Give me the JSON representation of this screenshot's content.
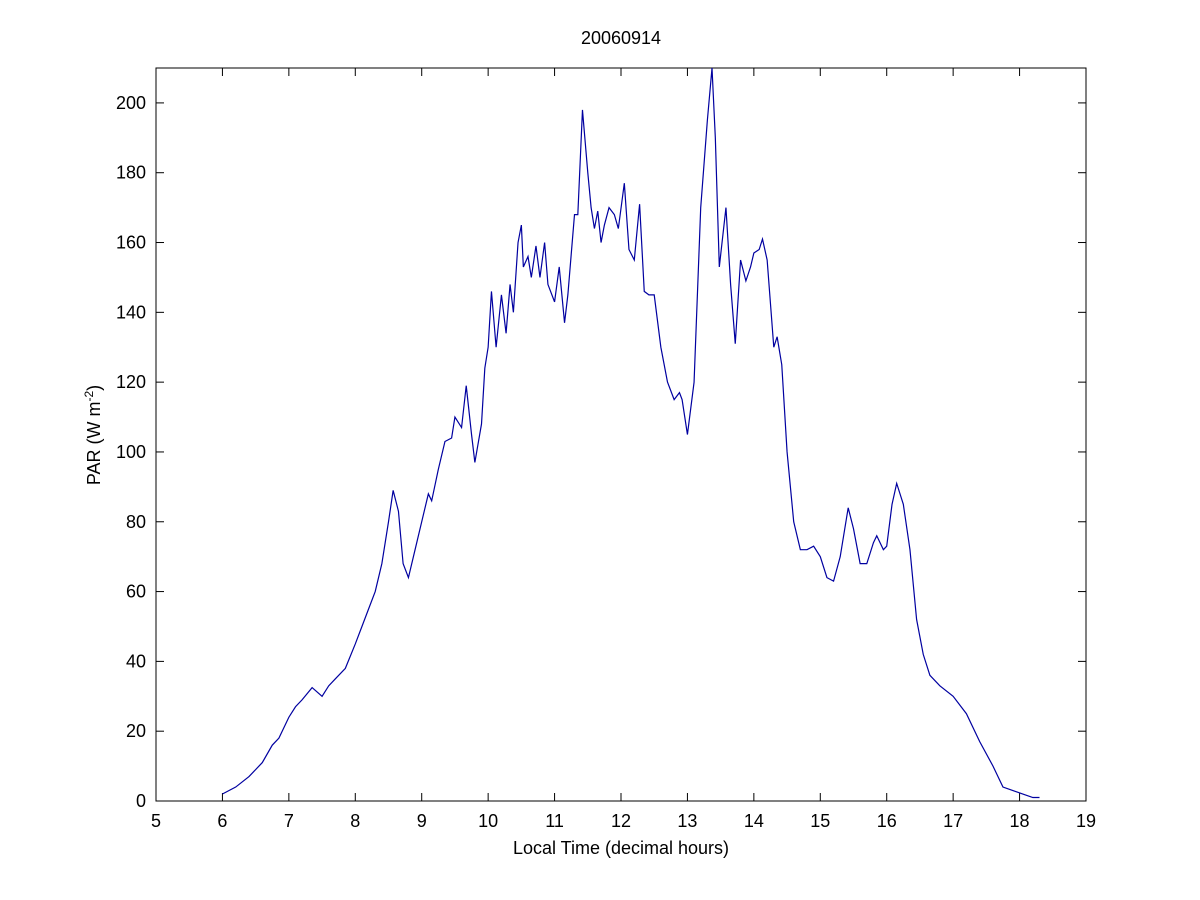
{
  "chart_data": {
    "type": "line",
    "title": "20060914",
    "xlabel": "Local Time (decimal hours)",
    "ylabel": {
      "text": "PAR (W m",
      "superscript": "-2",
      "suffix": ")"
    },
    "xlim": [
      5,
      19
    ],
    "ylim": [
      0,
      210
    ],
    "xticks": [
      5,
      6,
      7,
      8,
      9,
      10,
      11,
      12,
      13,
      14,
      15,
      16,
      17,
      18,
      19
    ],
    "yticks": [
      0,
      20,
      40,
      60,
      80,
      100,
      120,
      140,
      160,
      180,
      200
    ],
    "grid": false,
    "x": [
      6.0,
      6.2,
      6.4,
      6.6,
      6.75,
      6.85,
      7.0,
      7.1,
      7.2,
      7.35,
      7.5,
      7.6,
      7.7,
      7.85,
      8.0,
      8.1,
      8.2,
      8.3,
      8.4,
      8.5,
      8.57,
      8.65,
      8.72,
      8.8,
      8.9,
      9.0,
      9.1,
      9.15,
      9.25,
      9.35,
      9.45,
      9.5,
      9.6,
      9.67,
      9.75,
      9.8,
      9.9,
      9.95,
      10.0,
      10.05,
      10.12,
      10.2,
      10.27,
      10.33,
      10.38,
      10.45,
      10.5,
      10.53,
      10.6,
      10.65,
      10.72,
      10.78,
      10.85,
      10.9,
      11.0,
      11.07,
      11.15,
      11.2,
      11.3,
      11.35,
      11.42,
      11.5,
      11.55,
      11.6,
      11.65,
      11.7,
      11.75,
      11.82,
      11.9,
      11.96,
      12.05,
      12.12,
      12.2,
      12.28,
      12.35,
      12.42,
      12.5,
      12.6,
      12.7,
      12.8,
      12.88,
      12.92,
      13.0,
      13.1,
      13.2,
      13.3,
      13.37,
      13.42,
      13.48,
      13.58,
      13.65,
      13.72,
      13.8,
      13.88,
      13.95,
      14.0,
      14.08,
      14.13,
      14.2,
      14.3,
      14.35,
      14.42,
      14.5,
      14.6,
      14.7,
      14.8,
      14.9,
      15.0,
      15.1,
      15.2,
      15.3,
      15.42,
      15.5,
      15.6,
      15.7,
      15.8,
      15.85,
      15.95,
      16.0,
      16.08,
      16.15,
      16.25,
      16.35,
      16.45,
      16.55,
      16.65,
      16.8,
      17.0,
      17.2,
      17.4,
      17.6,
      17.75,
      17.9,
      18.05,
      18.2,
      18.3
    ],
    "series": [
      {
        "color": "#0000a0",
        "values": [
          2,
          4,
          7,
          11,
          16,
          18,
          24,
          27,
          29,
          32.5,
          30,
          33,
          35,
          38,
          45,
          50,
          55,
          60,
          68,
          80,
          89,
          83,
          68,
          64,
          72,
          80,
          88,
          86,
          95,
          103,
          104,
          110,
          107,
          119,
          105,
          97,
          108,
          124,
          130,
          146,
          130,
          145,
          134,
          148,
          140,
          160,
          165,
          153,
          156,
          150,
          159,
          150,
          160,
          148,
          143,
          153,
          137,
          145,
          168,
          168,
          198,
          180,
          170,
          164,
          169,
          160,
          165,
          170,
          168,
          164,
          177,
          158,
          155,
          171,
          146,
          145,
          145,
          130,
          120,
          115,
          117,
          115,
          105,
          120,
          170,
          195,
          210,
          190,
          153,
          170,
          148,
          131,
          155,
          149,
          153,
          157,
          158,
          161,
          155,
          130,
          133,
          125,
          100,
          80,
          72,
          72,
          73,
          70,
          64,
          63,
          70,
          84,
          78,
          68,
          68,
          74,
          76,
          72,
          73,
          85,
          91,
          85,
          72,
          52,
          42,
          36,
          33,
          30,
          25,
          17,
          10,
          4,
          3,
          2,
          1,
          1
        ]
      }
    ]
  }
}
